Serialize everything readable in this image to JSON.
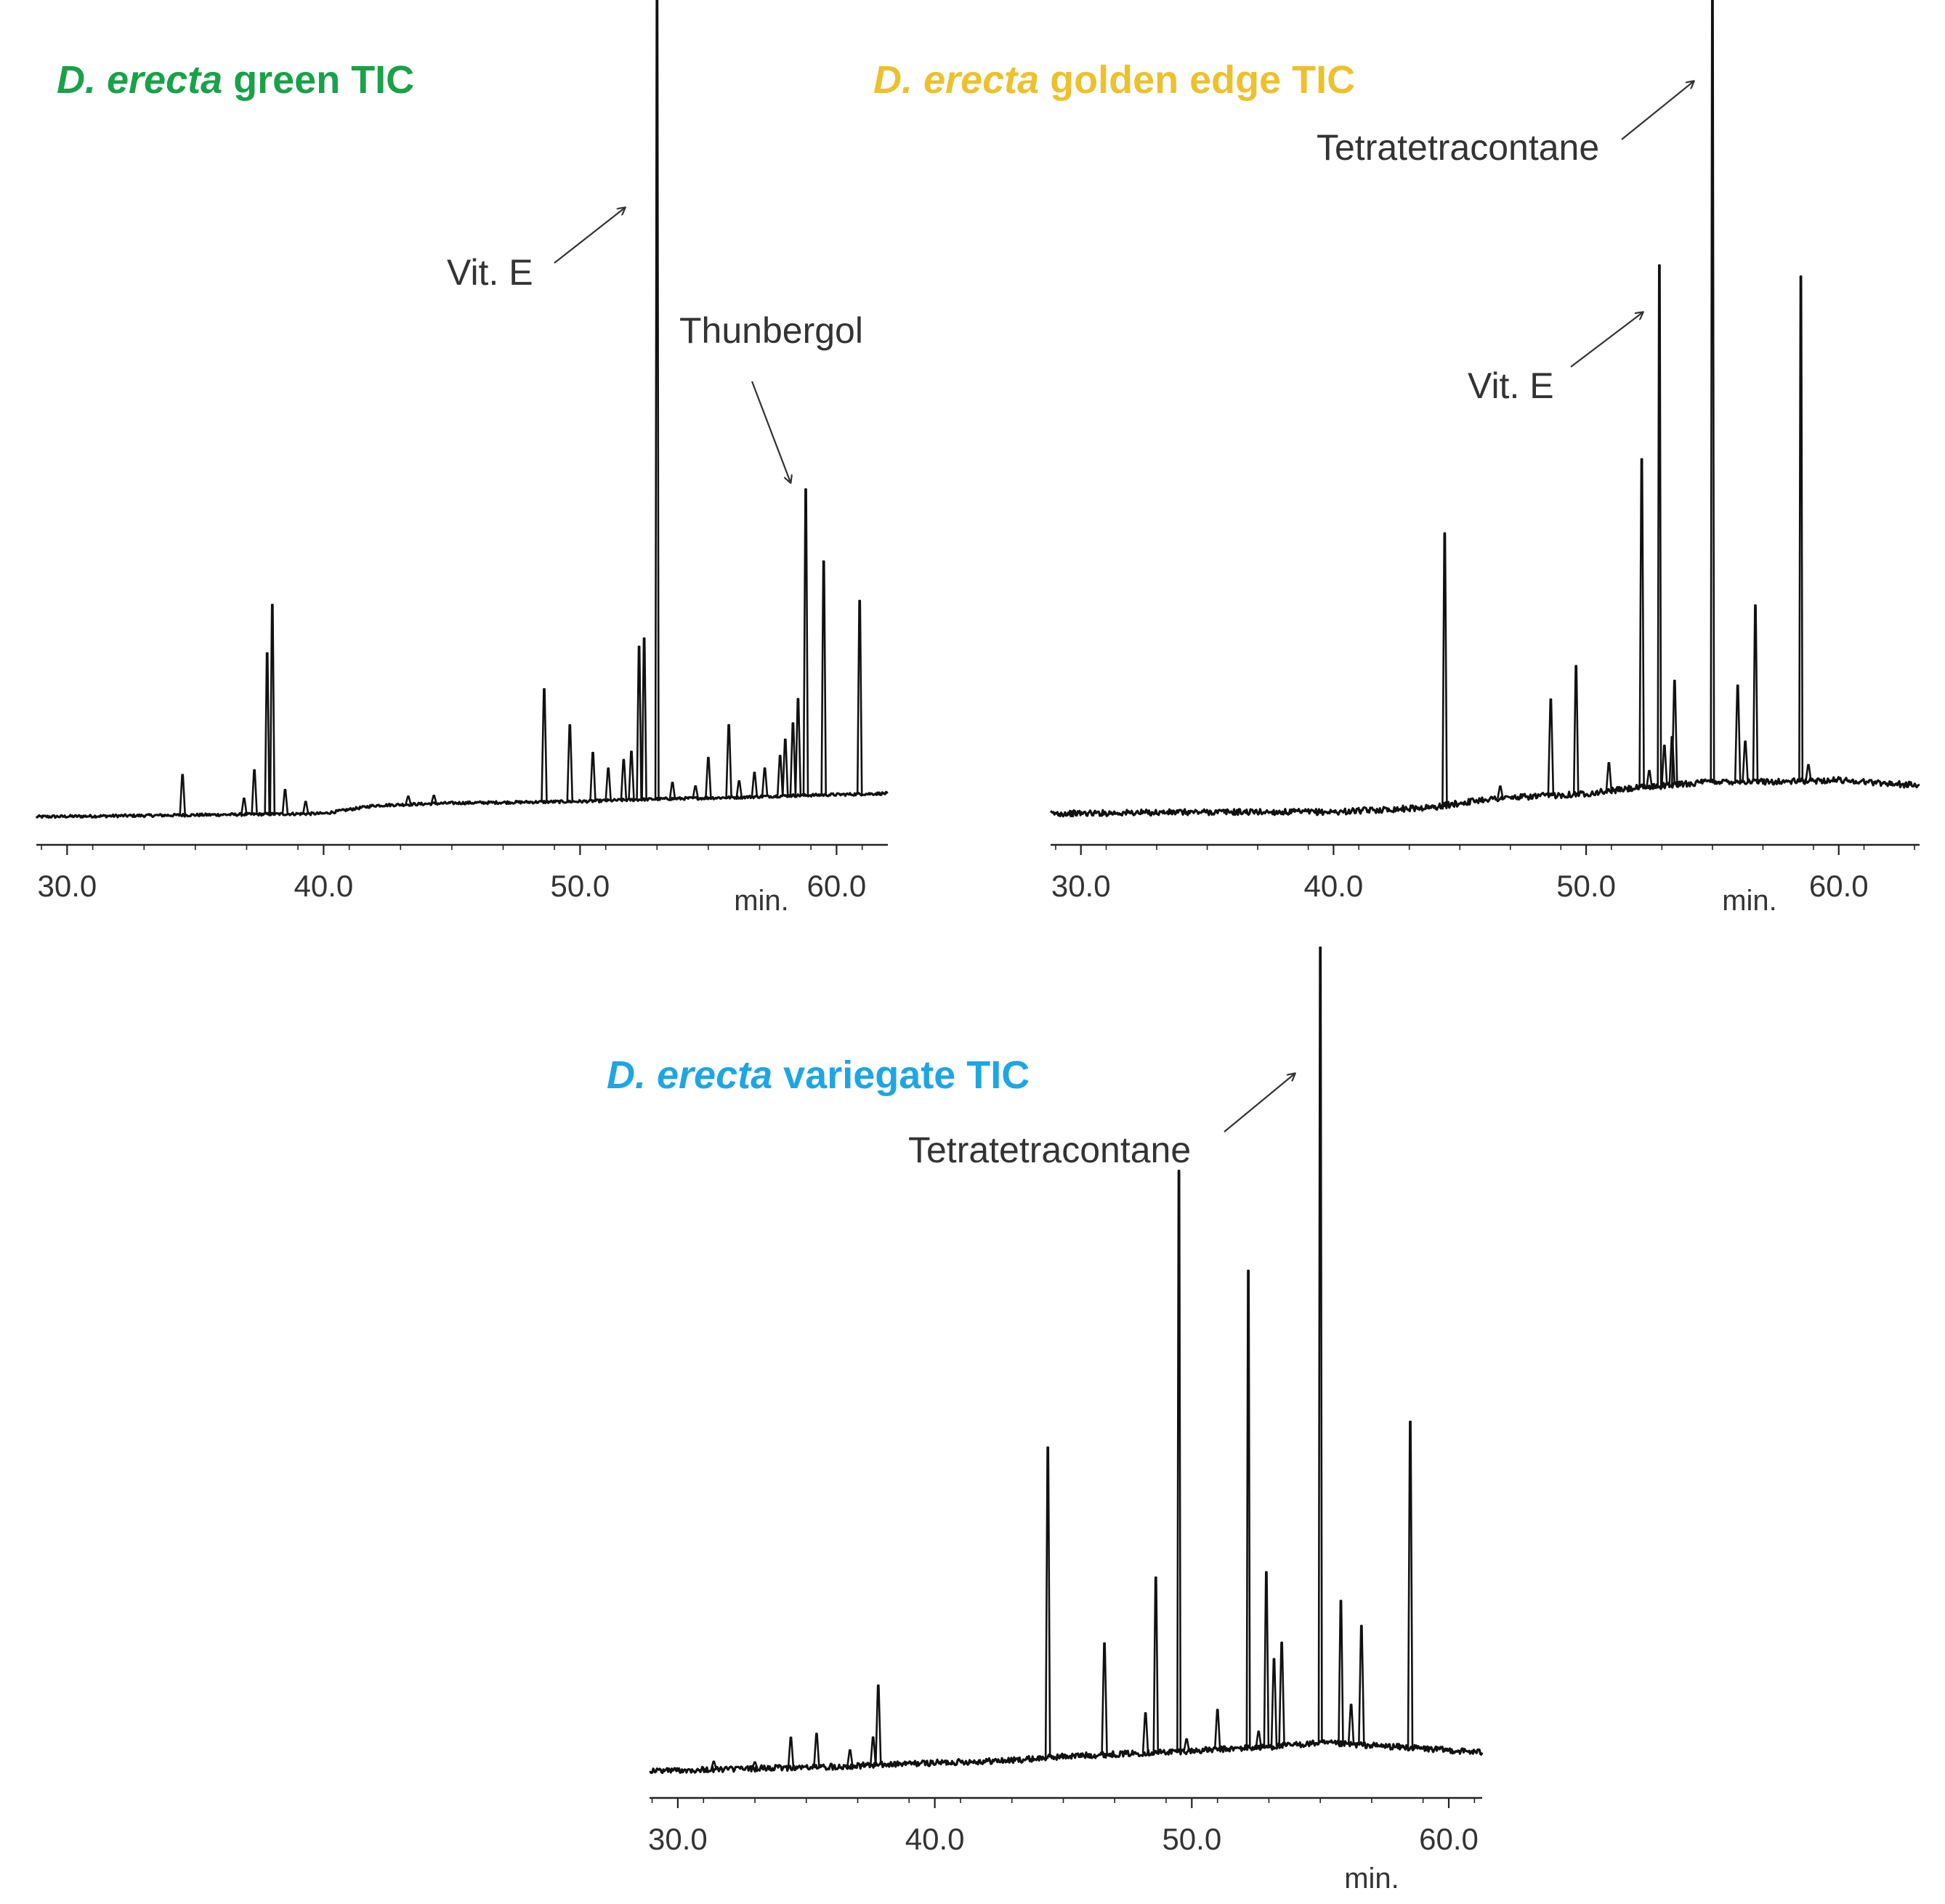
{
  "colors": {
    "trace": "#111111",
    "axis": "#222222",
    "label": "#333333",
    "green": "#1aa14a",
    "golden": "#ecc12e",
    "variegate": "#1ea6e4"
  },
  "chart_data": [
    {
      "type": "line",
      "title_italic": "D. erecta",
      "title_rest": " green TIC",
      "title_color": "green",
      "xlabel": "min.",
      "ylabel": "",
      "x_range": [
        28.8,
        62.0
      ],
      "y_range": [
        0,
        100
      ],
      "ticks": [
        30,
        40,
        50,
        60
      ],
      "tick_labels": [
        "30.0",
        "40.0",
        "50.0",
        "60.0"
      ],
      "baseline": [
        [
          28.8,
          0.6
        ],
        [
          40,
          1.0
        ],
        [
          42,
          2.0
        ],
        [
          45,
          2.3
        ],
        [
          50,
          2.5
        ],
        [
          53,
          2.8
        ],
        [
          56,
          3.0
        ],
        [
          58,
          3.2
        ],
        [
          62,
          3.5
        ]
      ],
      "peaks": [
        [
          34.5,
          5.0
        ],
        [
          36.9,
          2.0
        ],
        [
          37.3,
          5.5
        ],
        [
          37.8,
          20.0
        ],
        [
          38.0,
          26.0
        ],
        [
          38.5,
          3.0
        ],
        [
          39.3,
          1.5
        ],
        [
          43.3,
          1.0
        ],
        [
          44.3,
          1.0
        ],
        [
          48.6,
          14.0
        ],
        [
          49.6,
          9.5
        ],
        [
          50.5,
          6.0
        ],
        [
          51.1,
          4.0
        ],
        [
          51.7,
          5.0
        ],
        [
          52.0,
          6.0
        ],
        [
          52.3,
          19.0
        ],
        [
          52.5,
          20.0
        ],
        [
          53.0,
          100.0
        ],
        [
          53.6,
          2.0
        ],
        [
          54.5,
          1.5
        ],
        [
          55.0,
          5.0
        ],
        [
          55.8,
          9.0
        ],
        [
          56.2,
          2.0
        ],
        [
          56.8,
          3.0
        ],
        [
          57.2,
          3.5
        ],
        [
          57.8,
          5.0
        ],
        [
          58.0,
          7.0
        ],
        [
          58.3,
          9.0
        ],
        [
          58.5,
          12.0
        ],
        [
          58.8,
          38.0
        ],
        [
          59.5,
          29.0
        ],
        [
          60.9,
          24.0
        ]
      ],
      "annotations": [
        {
          "text": "Vit. E",
          "peak_x": 53.0
        },
        {
          "text": "Thunbergol",
          "peak_x": 58.8
        }
      ]
    },
    {
      "type": "line",
      "title_italic": "D. erecta",
      "title_rest": " golden edge TIC",
      "title_color": "golden",
      "xlabel": "min.",
      "ylabel": "",
      "x_range": [
        28.8,
        63.2
      ],
      "y_range": [
        0,
        100
      ],
      "ticks": [
        30,
        40,
        50,
        60
      ],
      "tick_labels": [
        "30.0",
        "40.0",
        "50.0",
        "60.0"
      ],
      "baseline": [
        [
          28.8,
          1.0
        ],
        [
          35,
          1.2
        ],
        [
          40,
          1.2
        ],
        [
          44,
          1.8
        ],
        [
          46,
          2.8
        ],
        [
          50,
          3.5
        ],
        [
          52,
          4.2
        ],
        [
          55,
          5.0
        ],
        [
          58,
          5.0
        ],
        [
          60,
          5.2
        ],
        [
          63.2,
          4.5
        ]
      ],
      "peaks": [
        [
          44.4,
          34.0
        ],
        [
          46.6,
          1.5
        ],
        [
          48.6,
          12.0
        ],
        [
          49.6,
          16.0
        ],
        [
          50.9,
          3.5
        ],
        [
          52.2,
          41.0
        ],
        [
          52.5,
          2.0
        ],
        [
          52.9,
          65.0
        ],
        [
          53.1,
          5.0
        ],
        [
          53.4,
          6.0
        ],
        [
          53.5,
          13.0
        ],
        [
          55.0,
          100.0
        ],
        [
          56.0,
          12.0
        ],
        [
          56.3,
          5.0
        ],
        [
          56.7,
          22.0
        ],
        [
          58.5,
          63.0
        ],
        [
          58.8,
          2.0
        ]
      ],
      "annotations": [
        {
          "text": "Vit. E",
          "peak_x": 52.9
        },
        {
          "text": "Tetratetracontane",
          "peak_x": 55.0
        }
      ]
    },
    {
      "type": "line",
      "title_italic": "D. erecta",
      "title_rest": " variegate TIC",
      "title_color": "variegate",
      "xlabel": "min.",
      "ylabel": "",
      "x_range": [
        28.9,
        61.3
      ],
      "y_range": [
        0,
        100
      ],
      "ticks": [
        30,
        40,
        50,
        60
      ],
      "tick_labels": [
        "30.0",
        "40.0",
        "50.0",
        "60.0"
      ],
      "baseline": [
        [
          28.9,
          0.5
        ],
        [
          32,
          0.7
        ],
        [
          36,
          1.0
        ],
        [
          40,
          1.5
        ],
        [
          43,
          1.8
        ],
        [
          45,
          2.3
        ],
        [
          50,
          3.0
        ],
        [
          53,
          3.5
        ],
        [
          55,
          4.0
        ],
        [
          58,
          3.5
        ],
        [
          61.3,
          2.8
        ]
      ],
      "peaks": [
        [
          31.4,
          1.0
        ],
        [
          33.0,
          0.8
        ],
        [
          34.4,
          3.8
        ],
        [
          35.4,
          4.2
        ],
        [
          36.7,
          2.0
        ],
        [
          37.6,
          3.5
        ],
        [
          37.8,
          10.0
        ],
        [
          44.4,
          39.0
        ],
        [
          46.6,
          14.0
        ],
        [
          48.2,
          5.0
        ],
        [
          48.6,
          22.0
        ],
        [
          49.5,
          73.0
        ],
        [
          49.8,
          1.5
        ],
        [
          51.0,
          5.0
        ],
        [
          52.2,
          60.0
        ],
        [
          52.6,
          2.0
        ],
        [
          52.9,
          22.0
        ],
        [
          53.2,
          11.0
        ],
        [
          53.5,
          13.0
        ],
        [
          55.0,
          100.0
        ],
        [
          55.8,
          18.0
        ],
        [
          56.2,
          5.0
        ],
        [
          56.6,
          15.0
        ],
        [
          58.5,
          41.0
        ]
      ],
      "annotations": [
        {
          "text": "Tetratetracontane",
          "peak_x": 55.0
        }
      ]
    }
  ]
}
